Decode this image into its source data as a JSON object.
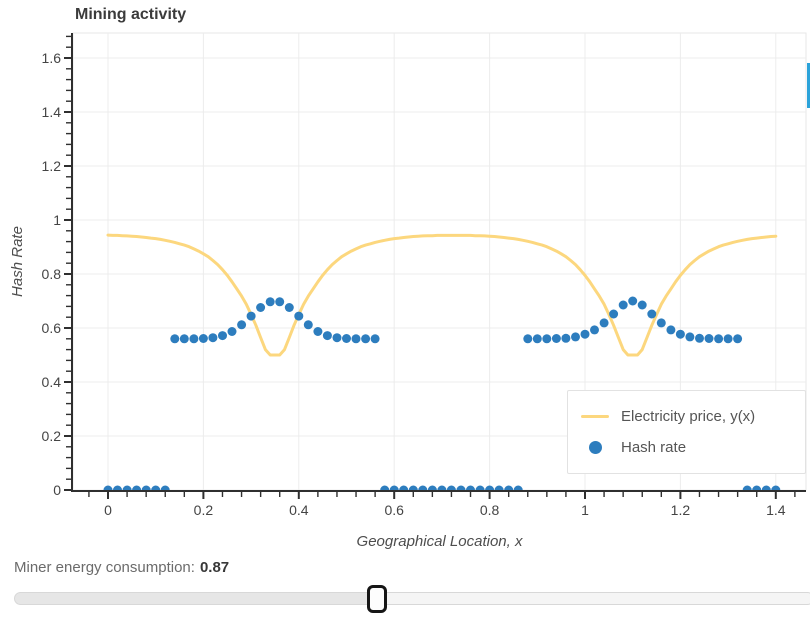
{
  "title": "Mining activity",
  "accent_color": "#2ba3da",
  "chart_data": {
    "type": "line+scatter",
    "title": "Mining activity",
    "xlabel": "Geographical Location, x",
    "ylabel": "Hash Rate",
    "xlim": [
      -0.073,
      1.464
    ],
    "ylim": [
      0,
      1.693
    ],
    "x_ticks": [
      0,
      0.2,
      0.4,
      0.6,
      0.8,
      1,
      1.2,
      1.4
    ],
    "y_ticks": [
      0,
      0.2,
      0.4,
      0.6,
      0.8,
      1,
      1.2,
      1.4,
      1.6
    ],
    "minor_tick_step": 0.04,
    "grid": true,
    "legend_position": "bottom-right",
    "series": [
      {
        "name": "Electricity price, y(x)",
        "type": "line",
        "color": "#fcd77e",
        "x_start": 0,
        "x_step": 0.01,
        "y": [
          0.944,
          0.943,
          0.943,
          0.942,
          0.941,
          0.94,
          0.939,
          0.937,
          0.935,
          0.933,
          0.931,
          0.928,
          0.925,
          0.921,
          0.917,
          0.912,
          0.907,
          0.901,
          0.893,
          0.885,
          0.875,
          0.864,
          0.85,
          0.835,
          0.816,
          0.795,
          0.771,
          0.745,
          0.718,
          0.688,
          0.65,
          0.61,
          0.565,
          0.52,
          0.5,
          0.5,
          0.5,
          0.52,
          0.565,
          0.61,
          0.65,
          0.688,
          0.718,
          0.745,
          0.771,
          0.795,
          0.816,
          0.835,
          0.85,
          0.864,
          0.875,
          0.885,
          0.893,
          0.901,
          0.907,
          0.912,
          0.917,
          0.921,
          0.925,
          0.928,
          0.931,
          0.933,
          0.935,
          0.937,
          0.939,
          0.94,
          0.941,
          0.942,
          0.942,
          0.943,
          0.943,
          0.943,
          0.943,
          0.943,
          0.943,
          0.943,
          0.943,
          0.942,
          0.942,
          0.941,
          0.94,
          0.939,
          0.937,
          0.935,
          0.933,
          0.931,
          0.928,
          0.925,
          0.921,
          0.917,
          0.912,
          0.907,
          0.901,
          0.893,
          0.885,
          0.875,
          0.864,
          0.85,
          0.835,
          0.816,
          0.795,
          0.771,
          0.745,
          0.718,
          0.688,
          0.65,
          0.61,
          0.565,
          0.52,
          0.5,
          0.5,
          0.5,
          0.52,
          0.565,
          0.61,
          0.65,
          0.688,
          0.718,
          0.745,
          0.771,
          0.795,
          0.816,
          0.835,
          0.85,
          0.864,
          0.875,
          0.885,
          0.893,
          0.901,
          0.907,
          0.912,
          0.917,
          0.921,
          0.925,
          0.928,
          0.931,
          0.933,
          0.935,
          0.937,
          0.939,
          0.94
        ]
      },
      {
        "name": "Hash rate",
        "type": "scatter",
        "color": "#2d7dbe",
        "x_start": 0,
        "x_step": 0.02,
        "y": [
          0,
          0,
          0,
          0,
          0,
          0,
          0,
          0.56,
          0.56,
          0.56,
          0.561,
          0.564,
          0.572,
          0.587,
          0.612,
          0.644,
          0.676,
          0.697,
          0.697,
          0.676,
          0.644,
          0.612,
          0.587,
          0.572,
          0.564,
          0.561,
          0.56,
          0.56,
          0.56,
          0,
          0,
          0,
          0,
          0,
          0,
          0,
          0,
          0,
          0,
          0,
          0,
          0,
          0,
          0,
          0.56,
          0.56,
          0.56,
          0.561,
          0.562,
          0.567,
          0.577,
          0.593,
          0.619,
          0.652,
          0.685,
          0.7,
          0.685,
          0.652,
          0.619,
          0.593,
          0.577,
          0.567,
          0.562,
          0.561,
          0.56,
          0.56,
          0.56,
          0,
          0,
          0,
          0
        ]
      }
    ]
  },
  "legend": {
    "items": [
      {
        "label": "Electricity price, y(x)",
        "marker": "line",
        "color": "#fcd77e"
      },
      {
        "label": "Hash rate",
        "marker": "circle",
        "color": "#2d7dbe"
      }
    ]
  },
  "controls": {
    "label": "Miner energy consumption:",
    "value": "0.87",
    "slider": {
      "min": 0,
      "max": 2,
      "step": 0.01,
      "value": 0.87
    }
  }
}
